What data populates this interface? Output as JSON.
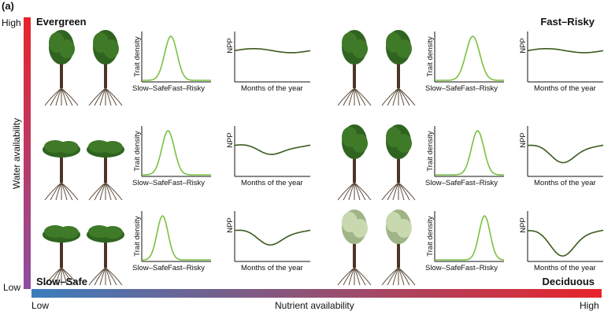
{
  "panel_label": "(a)",
  "corners": {
    "top_left": "Evergreen",
    "top_right": "Fast–Risky",
    "bottom_left": "Slow–Safe",
    "bottom_right": "Deciduous"
  },
  "y_axis": {
    "title": "Water availability",
    "high": "High",
    "low": "Low",
    "gradient": [
      "#e8242b",
      "#8c4fa0"
    ]
  },
  "x_axis": {
    "title": "Nutrient availability",
    "low": "Low",
    "high": "High",
    "gradient": [
      "#3c7dbd",
      "#e8242b"
    ]
  },
  "colors": {
    "density_curve": "#7ac143",
    "npp_curve": "#3a5a1c",
    "axis": "#111111"
  },
  "density_plot": {
    "ylabel": "Trait density",
    "x_left": "Slow–Safe",
    "x_right": "Fast–Risky"
  },
  "npp_plot": {
    "ylabel": "NPP",
    "xlabel": "Months of the year"
  },
  "tree_types": {
    "evergreen": "dark-green-canopy-tree",
    "spreading": "broad-flat-canopy-tree",
    "leafless": "pale-sparse-canopy-tree"
  },
  "cells": [
    {
      "col": 0,
      "row": 0,
      "tree": "evergreen",
      "density_peak": 0.42,
      "density_width": 0.09,
      "npp_dip": 0.0
    },
    {
      "col": 0,
      "row": 1,
      "tree": "spreading",
      "density_peak": 0.38,
      "density_width": 0.09,
      "npp_dip": 0.35
    },
    {
      "col": 0,
      "row": 2,
      "tree": "spreading",
      "density_peak": 0.3,
      "density_width": 0.08,
      "npp_dip": 0.55
    },
    {
      "col": 1,
      "row": 0,
      "tree": "evergreen",
      "density_peak": 0.55,
      "density_width": 0.1,
      "npp_dip": 0.0
    },
    {
      "col": 1,
      "row": 1,
      "tree": "evergreen",
      "density_peak": 0.62,
      "density_width": 0.09,
      "npp_dip": 0.65
    },
    {
      "col": 1,
      "row": 2,
      "tree": "leafless",
      "density_peak": 0.72,
      "density_width": 0.08,
      "npp_dip": 0.95
    }
  ]
}
